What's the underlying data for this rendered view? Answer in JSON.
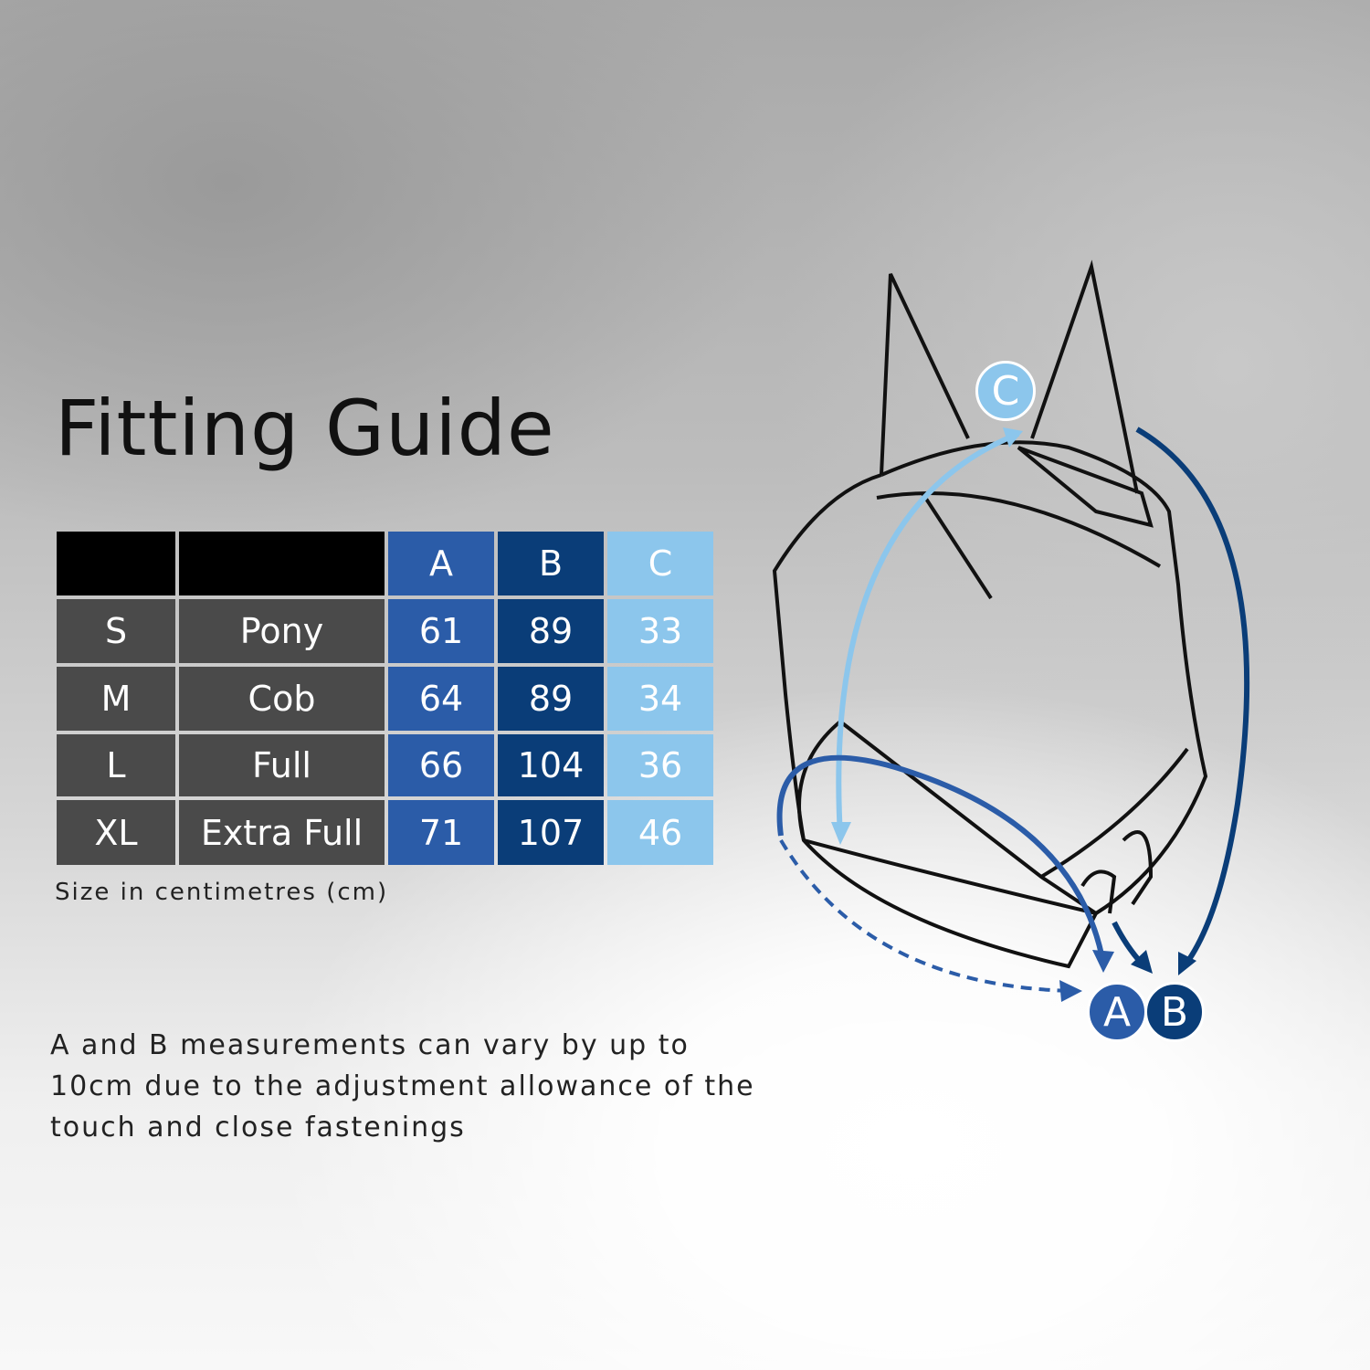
{
  "title": "Fitting Guide",
  "table": {
    "headers": [
      "",
      "",
      "A",
      "B",
      "C"
    ],
    "rows": [
      [
        "S",
        "Pony",
        "61",
        "89",
        "33"
      ],
      [
        "M",
        "Cob",
        "64",
        "89",
        "34"
      ],
      [
        "L",
        "Full",
        "66",
        "104",
        "36"
      ],
      [
        "XL",
        "Extra Full",
        "71",
        "107",
        "46"
      ]
    ]
  },
  "unit_note": "Size in centimetres (cm)",
  "disclaimer": "A and B measurements can vary by up to 10cm due to the adjustment allowance of the touch and close fastenings",
  "diagram": {
    "labels": {
      "a": "A",
      "b": "B",
      "c": "C"
    }
  },
  "colors": {
    "header_dark": "#000000",
    "label_cells": "#4a4a4a",
    "col_a": "#2b5ca8",
    "col_b": "#0a3d78",
    "col_c": "#8cc6ec"
  }
}
